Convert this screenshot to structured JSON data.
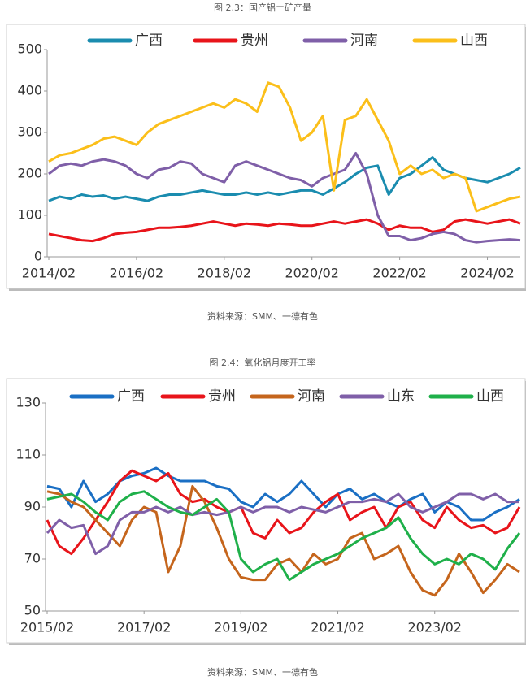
{
  "chart_data": [
    {
      "type": "line",
      "title": "图 2.3：国产铝土矿产量",
      "source": "资料来源：SMM、一德有色",
      "categories": [
        "2014/02",
        null,
        null,
        null,
        null,
        null,
        null,
        null,
        "2016/02",
        null,
        null,
        null,
        null,
        null,
        null,
        null,
        "2018/02",
        null,
        null,
        null,
        null,
        null,
        null,
        null,
        "2020/02",
        null,
        null,
        null,
        null,
        null,
        null,
        null,
        "2022/02",
        null,
        null,
        null,
        null,
        null,
        null,
        null,
        "2024/02",
        null,
        null,
        null
      ],
      "series": [
        {
          "name": "广西",
          "color": "#1a8caf",
          "values": [
            135,
            145,
            140,
            150,
            145,
            148,
            140,
            145,
            140,
            135,
            145,
            150,
            150,
            155,
            160,
            155,
            150,
            150,
            155,
            150,
            155,
            150,
            155,
            160,
            160,
            150,
            165,
            180,
            200,
            215,
            220,
            150,
            190,
            200,
            220,
            240,
            210,
            200,
            190,
            185,
            180,
            190,
            200,
            215
          ]
        },
        {
          "name": "贵州",
          "color": "#e8141a",
          "values": [
            55,
            50,
            45,
            40,
            38,
            45,
            55,
            58,
            60,
            65,
            70,
            70,
            72,
            75,
            80,
            85,
            80,
            75,
            80,
            78,
            75,
            80,
            78,
            75,
            75,
            80,
            85,
            80,
            85,
            90,
            80,
            65,
            75,
            70,
            70,
            60,
            65,
            85,
            90,
            85,
            80,
            85,
            90,
            80
          ]
        },
        {
          "name": "河南",
          "color": "#7f5fa8",
          "values": [
            200,
            220,
            225,
            220,
            230,
            235,
            230,
            220,
            200,
            190,
            210,
            215,
            230,
            225,
            200,
            190,
            180,
            220,
            230,
            220,
            210,
            200,
            190,
            185,
            170,
            190,
            200,
            210,
            250,
            200,
            100,
            50,
            50,
            40,
            45,
            55,
            60,
            55,
            40,
            35,
            38,
            40,
            42,
            40
          ]
        },
        {
          "name": "山西",
          "color": "#fbbf1a",
          "values": [
            230,
            245,
            250,
            260,
            270,
            285,
            290,
            280,
            270,
            300,
            320,
            330,
            340,
            350,
            360,
            370,
            360,
            380,
            370,
            350,
            420,
            410,
            360,
            280,
            300,
            340,
            160,
            330,
            340,
            380,
            330,
            280,
            200,
            220,
            200,
            210,
            190,
            200,
            190,
            110,
            120,
            130,
            140,
            145
          ]
        }
      ],
      "ylim": [
        0,
        500
      ],
      "yticks": [
        0,
        100,
        200,
        300,
        400,
        500
      ],
      "grid": false,
      "legend": "top"
    },
    {
      "type": "line",
      "title": "图 2.4：氧化铝月度开工率",
      "source": "资料来源：SMM、一德有色",
      "categories": [
        "2015/02",
        null,
        null,
        null,
        null,
        null,
        null,
        null,
        "2017/02",
        null,
        null,
        null,
        null,
        null,
        null,
        null,
        "2019/02",
        null,
        null,
        null,
        null,
        null,
        null,
        null,
        "2021/02",
        null,
        null,
        null,
        null,
        null,
        null,
        null,
        "2023/02",
        null,
        null,
        null,
        null,
        null,
        null,
        null
      ],
      "series": [
        {
          "name": "广西",
          "color": "#1a6fc4",
          "values": [
            98,
            97,
            90,
            100,
            92,
            95,
            100,
            102,
            103,
            105,
            102,
            100,
            100,
            100,
            98,
            97,
            92,
            90,
            95,
            92,
            95,
            100,
            95,
            90,
            95,
            97,
            93,
            95,
            92,
            90,
            93,
            95,
            88,
            92,
            90,
            85,
            85,
            88,
            90,
            93
          ]
        },
        {
          "name": "贵州",
          "color": "#e8141a",
          "values": [
            85,
            75,
            72,
            78,
            85,
            92,
            100,
            104,
            102,
            100,
            103,
            95,
            92,
            93,
            90,
            88,
            90,
            80,
            78,
            85,
            80,
            82,
            88,
            92,
            95,
            85,
            88,
            90,
            82,
            90,
            92,
            85,
            82,
            90,
            85,
            82,
            83,
            80,
            82,
            90
          ]
        },
        {
          "name": "河南",
          "color": "#c5651c",
          "values": [
            96,
            95,
            92,
            90,
            85,
            80,
            75,
            85,
            90,
            88,
            65,
            75,
            98,
            92,
            82,
            70,
            63,
            62,
            62,
            68,
            70,
            65,
            72,
            68,
            70,
            78,
            80,
            70,
            72,
            75,
            65,
            58,
            56,
            62,
            72,
            65,
            57,
            62,
            68,
            65
          ]
        },
        {
          "name": "山东",
          "color": "#7f5fa8",
          "values": [
            80,
            85,
            82,
            83,
            72,
            75,
            85,
            88,
            88,
            90,
            88,
            90,
            87,
            88,
            87,
            88,
            90,
            88,
            90,
            90,
            88,
            90,
            89,
            88,
            90,
            92,
            92,
            93,
            92,
            95,
            90,
            88,
            90,
            92,
            95,
            95,
            93,
            95,
            92,
            92
          ]
        },
        {
          "name": "山西",
          "color": "#1fb04a",
          "values": [
            93,
            94,
            95,
            92,
            88,
            85,
            92,
            95,
            96,
            93,
            90,
            88,
            87,
            90,
            93,
            88,
            70,
            65,
            68,
            70,
            62,
            65,
            68,
            70,
            72,
            75,
            78,
            80,
            82,
            86,
            78,
            72,
            68,
            70,
            68,
            72,
            70,
            66,
            74,
            80
          ]
        }
      ],
      "ylim": [
        50,
        130
      ],
      "yticks": [
        50,
        70,
        90,
        110,
        130
      ],
      "grid": false,
      "legend": "top"
    }
  ]
}
